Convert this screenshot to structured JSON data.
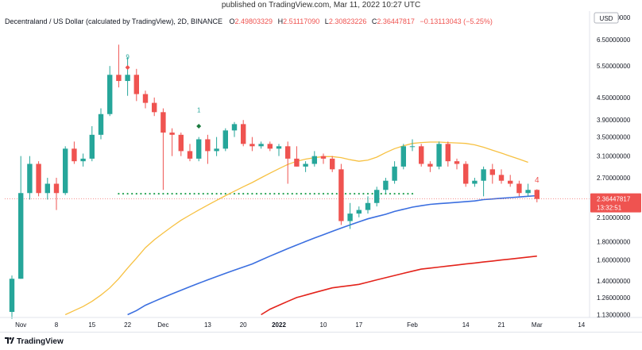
{
  "header": {
    "published": "published on TradingView.com, Mar 11, 2022 10:27 UTC"
  },
  "legend": {
    "symbol": "Decentraland / US Dollar (calculated by TradingView), 2D, BINANCE",
    "o_label": "O",
    "o": "2.49803329",
    "h_label": "H",
    "h": "2.51117090",
    "l_label": "L",
    "l": "2.30823226",
    "c_label": "C",
    "c": "2.36447817",
    "change": "−0.13113043 (−5.25%)"
  },
  "currency": "USD",
  "price_tag": {
    "price": "2.36447817",
    "countdown": "13:32:51"
  },
  "footer": {
    "brand": "TradingView"
  },
  "colors": {
    "up": "#26a69a",
    "down": "#ef5350",
    "ma_fast": "#f7c142",
    "ma_mid": "#3b6fe0",
    "ma_slow": "#e3231b"
  },
  "chart_data": {
    "type": "candlestick",
    "scale": "log",
    "ylim": [
      1.11,
      7.8
    ],
    "y_ticks": [
      "7.50000000",
      "6.50000000",
      "5.50000000",
      "4.50000000",
      "3.90000000",
      "3.50000000",
      "3.10000000",
      "2.70000000",
      "2.10000000",
      "1.80000000",
      "1.60000000",
      "1.40000000",
      "1.26000000",
      "1.13000000"
    ],
    "y_tick_values": [
      7.5,
      6.5,
      5.5,
      4.5,
      3.9,
      3.5,
      3.1,
      2.7,
      2.1,
      1.8,
      1.6,
      1.4,
      1.26,
      1.13
    ],
    "x_ticks": [
      {
        "label": "Nov",
        "index": 1
      },
      {
        "label": "8",
        "index": 5
      },
      {
        "label": "15",
        "index": 9
      },
      {
        "label": "22",
        "index": 13
      },
      {
        "label": "Dec",
        "index": 17
      },
      {
        "label": "13",
        "index": 22
      },
      {
        "label": "20",
        "index": 26
      },
      {
        "label": "2022",
        "index": 30
      },
      {
        "label": "10",
        "index": 35
      },
      {
        "label": "17",
        "index": 39
      },
      {
        "label": "Feb",
        "index": 45
      },
      {
        "label": "14",
        "index": 51
      },
      {
        "label": "21",
        "index": 55
      },
      {
        "label": "Mar",
        "index": 59
      },
      {
        "label": "14",
        "index": 64
      }
    ],
    "candles": [
      {
        "o": 1.15,
        "h": 1.45,
        "l": 1.1,
        "c": 1.42
      },
      {
        "o": 1.42,
        "h": 3.1,
        "l": 1.42,
        "c": 2.45
      },
      {
        "o": 2.45,
        "h": 3.1,
        "l": 2.35,
        "c": 2.95
      },
      {
        "o": 2.95,
        "h": 3.0,
        "l": 2.4,
        "c": 2.45
      },
      {
        "o": 2.45,
        "h": 2.7,
        "l": 2.35,
        "c": 2.6
      },
      {
        "o": 2.6,
        "h": 2.7,
        "l": 2.2,
        "c": 2.45
      },
      {
        "o": 2.45,
        "h": 3.3,
        "l": 2.42,
        "c": 3.25
      },
      {
        "o": 3.25,
        "h": 3.4,
        "l": 2.95,
        "c": 3.0
      },
      {
        "o": 3.0,
        "h": 3.15,
        "l": 2.9,
        "c": 3.05
      },
      {
        "o": 3.05,
        "h": 3.75,
        "l": 3.0,
        "c": 3.55
      },
      {
        "o": 3.55,
        "h": 4.2,
        "l": 3.45,
        "c": 4.05
      },
      {
        "o": 4.05,
        "h": 5.5,
        "l": 4.0,
        "c": 5.2
      },
      {
        "o": 5.2,
        "h": 6.3,
        "l": 4.8,
        "c": 5.0
      },
      {
        "o": 5.0,
        "h": 5.8,
        "l": 4.55,
        "c": 5.2
      },
      {
        "o": 5.2,
        "h": 5.4,
        "l": 4.4,
        "c": 4.6
      },
      {
        "o": 4.6,
        "h": 4.7,
        "l": 4.2,
        "c": 4.35
      },
      {
        "o": 4.35,
        "h": 4.5,
        "l": 4.0,
        "c": 4.1
      },
      {
        "o": 4.1,
        "h": 4.2,
        "l": 2.5,
        "c": 3.6
      },
      {
        "o": 3.6,
        "h": 3.7,
        "l": 3.1,
        "c": 3.55
      },
      {
        "o": 3.55,
        "h": 3.6,
        "l": 3.1,
        "c": 3.2
      },
      {
        "o": 3.2,
        "h": 3.35,
        "l": 3.0,
        "c": 3.05
      },
      {
        "o": 3.05,
        "h": 3.5,
        "l": 3.0,
        "c": 3.45
      },
      {
        "o": 3.45,
        "h": 3.55,
        "l": 2.95,
        "c": 3.2
      },
      {
        "o": 3.2,
        "h": 3.5,
        "l": 3.1,
        "c": 3.25
      },
      {
        "o": 3.25,
        "h": 3.7,
        "l": 3.2,
        "c": 3.65
      },
      {
        "o": 3.65,
        "h": 3.85,
        "l": 3.5,
        "c": 3.8
      },
      {
        "o": 3.8,
        "h": 3.9,
        "l": 3.3,
        "c": 3.35
      },
      {
        "o": 3.35,
        "h": 3.5,
        "l": 3.2,
        "c": 3.3
      },
      {
        "o": 3.3,
        "h": 3.4,
        "l": 3.25,
        "c": 3.35
      },
      {
        "o": 3.35,
        "h": 3.4,
        "l": 3.2,
        "c": 3.25
      },
      {
        "o": 3.25,
        "h": 3.35,
        "l": 3.1,
        "c": 3.3
      },
      {
        "o": 3.3,
        "h": 3.4,
        "l": 2.6,
        "c": 3.05
      },
      {
        "o": 3.05,
        "h": 3.3,
        "l": 2.9,
        "c": 2.9
      },
      {
        "o": 2.9,
        "h": 3.0,
        "l": 2.8,
        "c": 2.95
      },
      {
        "o": 2.95,
        "h": 3.2,
        "l": 2.9,
        "c": 3.1
      },
      {
        "o": 3.1,
        "h": 3.15,
        "l": 2.95,
        "c": 3.05
      },
      {
        "o": 3.05,
        "h": 3.1,
        "l": 2.8,
        "c": 2.85
      },
      {
        "o": 2.85,
        "h": 2.95,
        "l": 2.0,
        "c": 2.05
      },
      {
        "o": 2.05,
        "h": 2.3,
        "l": 1.95,
        "c": 2.15
      },
      {
        "o": 2.15,
        "h": 2.25,
        "l": 2.1,
        "c": 2.2
      },
      {
        "o": 2.2,
        "h": 2.4,
        "l": 2.15,
        "c": 2.3
      },
      {
        "o": 2.3,
        "h": 2.55,
        "l": 2.25,
        "c": 2.5
      },
      {
        "o": 2.5,
        "h": 2.7,
        "l": 2.45,
        "c": 2.65
      },
      {
        "o": 2.65,
        "h": 3.0,
        "l": 2.6,
        "c": 2.9
      },
      {
        "o": 2.9,
        "h": 3.35,
        "l": 2.85,
        "c": 3.3
      },
      {
        "o": 3.3,
        "h": 3.45,
        "l": 3.2,
        "c": 3.3
      },
      {
        "o": 3.3,
        "h": 3.35,
        "l": 2.9,
        "c": 2.95
      },
      {
        "o": 2.95,
        "h": 3.0,
        "l": 2.8,
        "c": 2.9
      },
      {
        "o": 2.9,
        "h": 3.4,
        "l": 2.85,
        "c": 3.35
      },
      {
        "o": 3.35,
        "h": 3.4,
        "l": 2.9,
        "c": 3.0
      },
      {
        "o": 3.0,
        "h": 3.05,
        "l": 2.85,
        "c": 2.95
      },
      {
        "o": 2.95,
        "h": 3.0,
        "l": 2.55,
        "c": 2.6
      },
      {
        "o": 2.6,
        "h": 2.7,
        "l": 2.55,
        "c": 2.65
      },
      {
        "o": 2.65,
        "h": 2.9,
        "l": 2.4,
        "c": 2.85
      },
      {
        "o": 2.85,
        "h": 2.95,
        "l": 2.6,
        "c": 2.75
      },
      {
        "o": 2.75,
        "h": 2.85,
        "l": 2.6,
        "c": 2.65
      },
      {
        "o": 2.65,
        "h": 2.75,
        "l": 2.55,
        "c": 2.6
      },
      {
        "o": 2.6,
        "h": 2.65,
        "l": 2.4,
        "c": 2.45
      },
      {
        "o": 2.45,
        "h": 2.6,
        "l": 2.4,
        "c": 2.5
      },
      {
        "o": 2.5,
        "h": 2.51,
        "l": 2.31,
        "c": 2.36
      }
    ],
    "ma_fast": {
      "start": 6,
      "values": [
        1.13,
        1.16,
        1.19,
        1.23,
        1.28,
        1.34,
        1.42,
        1.52,
        1.62,
        1.73,
        1.82,
        1.9,
        1.98,
        2.06,
        2.13,
        2.2,
        2.27,
        2.34,
        2.41,
        2.48,
        2.55,
        2.62,
        2.7,
        2.78,
        2.86,
        2.94,
        3.0,
        3.04,
        3.07,
        3.09,
        3.09,
        3.07,
        3.03,
        3.0,
        3.02,
        3.08,
        3.17,
        3.25,
        3.31,
        3.36,
        3.38,
        3.39,
        3.39,
        3.38,
        3.37,
        3.36,
        3.33,
        3.28,
        3.22,
        3.16,
        3.1,
        3.04,
        2.98
      ]
    },
    "ma_mid": {
      "start": 13,
      "values": [
        1.13,
        1.16,
        1.2,
        1.23,
        1.26,
        1.29,
        1.32,
        1.35,
        1.38,
        1.41,
        1.44,
        1.47,
        1.5,
        1.53,
        1.56,
        1.6,
        1.64,
        1.68,
        1.72,
        1.76,
        1.8,
        1.84,
        1.88,
        1.92,
        1.96,
        2.0,
        2.04,
        2.08,
        2.11,
        2.14,
        2.18,
        2.21,
        2.24,
        2.26,
        2.28,
        2.29,
        2.3,
        2.31,
        2.32,
        2.33,
        2.35,
        2.36,
        2.37,
        2.38,
        2.39,
        2.4,
        2.41
      ]
    },
    "ma_slow": {
      "start": 28,
      "values": [
        1.13,
        1.17,
        1.2,
        1.23,
        1.26,
        1.28,
        1.3,
        1.32,
        1.34,
        1.35,
        1.36,
        1.37,
        1.39,
        1.41,
        1.43,
        1.45,
        1.47,
        1.49,
        1.51,
        1.52,
        1.53,
        1.54,
        1.55,
        1.56,
        1.57,
        1.58,
        1.59,
        1.6,
        1.61,
        1.62,
        1.63,
        1.64
      ]
    },
    "support_level": 2.44,
    "support_range": [
      12,
      45
    ],
    "markers": [
      {
        "index": 13,
        "text": "9",
        "color": "#26a69a",
        "price": 5.75
      },
      {
        "index": 13,
        "text": "",
        "color": "#ef5350",
        "price": 5.45,
        "shape": "diamond"
      },
      {
        "index": 21,
        "text": "1",
        "color": "#26a69a",
        "price": 4.1
      },
      {
        "index": 21,
        "text": "",
        "color": "#1b7a3e",
        "price": 3.75,
        "shape": "diamond"
      },
      {
        "index": 59,
        "text": "4",
        "color": "#ef5350",
        "price": 2.62
      }
    ]
  }
}
